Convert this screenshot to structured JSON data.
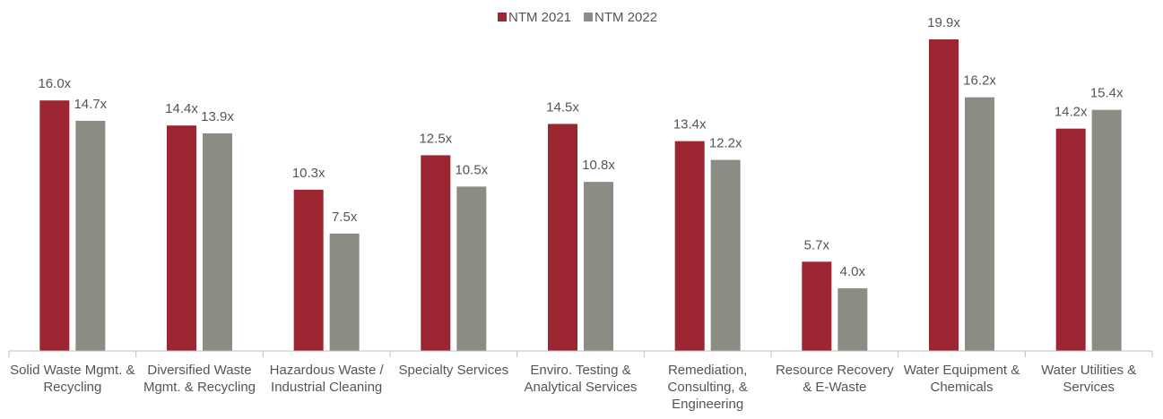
{
  "chart_data": {
    "type": "bar",
    "categories": [
      "Solid Waste Mgmt. & Recycling",
      "Diversified Waste Mgmt. & Recycling",
      "Hazardous Waste / Industrial Cleaning",
      "Specialty Services",
      "Enviro. Testing & Analytical Services",
      "Remediation, Consulting, & Engineering",
      "Resource Recovery & E-Waste",
      "Water Equipment & Chemicals",
      "Water Utilities & Services"
    ],
    "series": [
      {
        "name": "NTM 2021",
        "color": "#9b2530",
        "values": [
          16.0,
          14.4,
          10.3,
          12.5,
          14.5,
          13.4,
          5.7,
          19.9,
          14.2
        ],
        "value_labels": [
          "16.0x",
          "14.4x",
          "10.3x",
          "12.5x",
          "14.5x",
          "13.4x",
          "5.7x",
          "19.9x",
          "14.2x"
        ]
      },
      {
        "name": "NTM 2022",
        "color": "#8c8c85",
        "values": [
          14.7,
          13.9,
          7.5,
          10.5,
          10.8,
          12.2,
          4.0,
          16.2,
          15.4
        ],
        "value_labels": [
          "14.7x",
          "13.9x",
          "7.5x",
          "10.5x",
          "10.8x",
          "12.2x",
          "4.0x",
          "16.2x",
          "15.4x"
        ]
      }
    ],
    "legend": "top"
  }
}
